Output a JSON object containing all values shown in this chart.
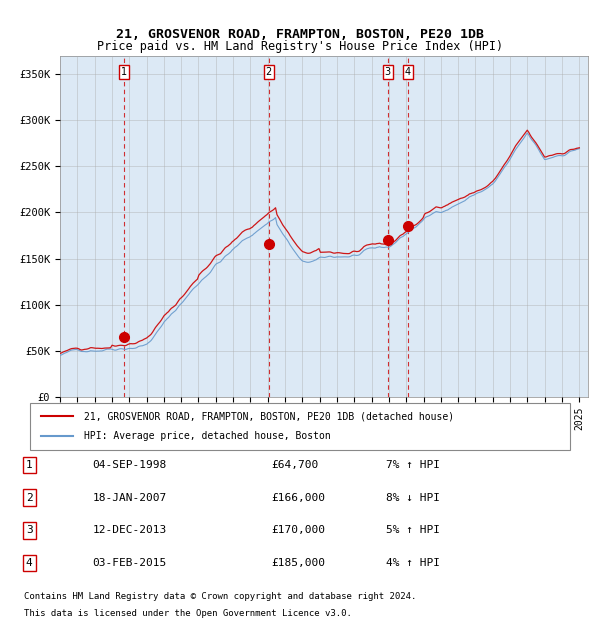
{
  "title1": "21, GROSVENOR ROAD, FRAMPTON, BOSTON, PE20 1DB",
  "title2": "Price paid vs. HM Land Registry's House Price Index (HPI)",
  "ylabel_ticks": [
    "£0",
    "£50K",
    "£100K",
    "£150K",
    "£200K",
    "£250K",
    "£300K",
    "£350K"
  ],
  "ytick_values": [
    0,
    50000,
    100000,
    150000,
    200000,
    250000,
    300000,
    350000
  ],
  "ylim": [
    0,
    370000
  ],
  "xlim_start": 1995.0,
  "xlim_end": 2025.5,
  "sale_dates": [
    1998.67,
    2007.05,
    2013.92,
    2015.08
  ],
  "sale_prices": [
    64700,
    166000,
    170000,
    185000
  ],
  "sale_labels": [
    "1",
    "2",
    "3",
    "4"
  ],
  "legend_line1": "21, GROSVENOR ROAD, FRAMPTON, BOSTON, PE20 1DB (detached house)",
  "legend_line2": "HPI: Average price, detached house, Boston",
  "table_rows": [
    [
      "1",
      "04-SEP-1998",
      "£64,700",
      "7% ↑ HPI"
    ],
    [
      "2",
      "18-JAN-2007",
      "£166,000",
      "8% ↓ HPI"
    ],
    [
      "3",
      "12-DEC-2013",
      "£170,000",
      "5% ↑ HPI"
    ],
    [
      "4",
      "03-FEB-2015",
      "£185,000",
      "4% ↑ HPI"
    ]
  ],
  "footer1": "Contains HM Land Registry data © Crown copyright and database right 2024.",
  "footer2": "This data is licensed under the Open Government Licence v3.0.",
  "red_line_color": "#cc0000",
  "blue_line_color": "#6699cc",
  "bg_color": "#dce9f5",
  "vline_color": "#cc0000",
  "grid_color": "#aaaaaa",
  "label_box_color": "#cc0000"
}
